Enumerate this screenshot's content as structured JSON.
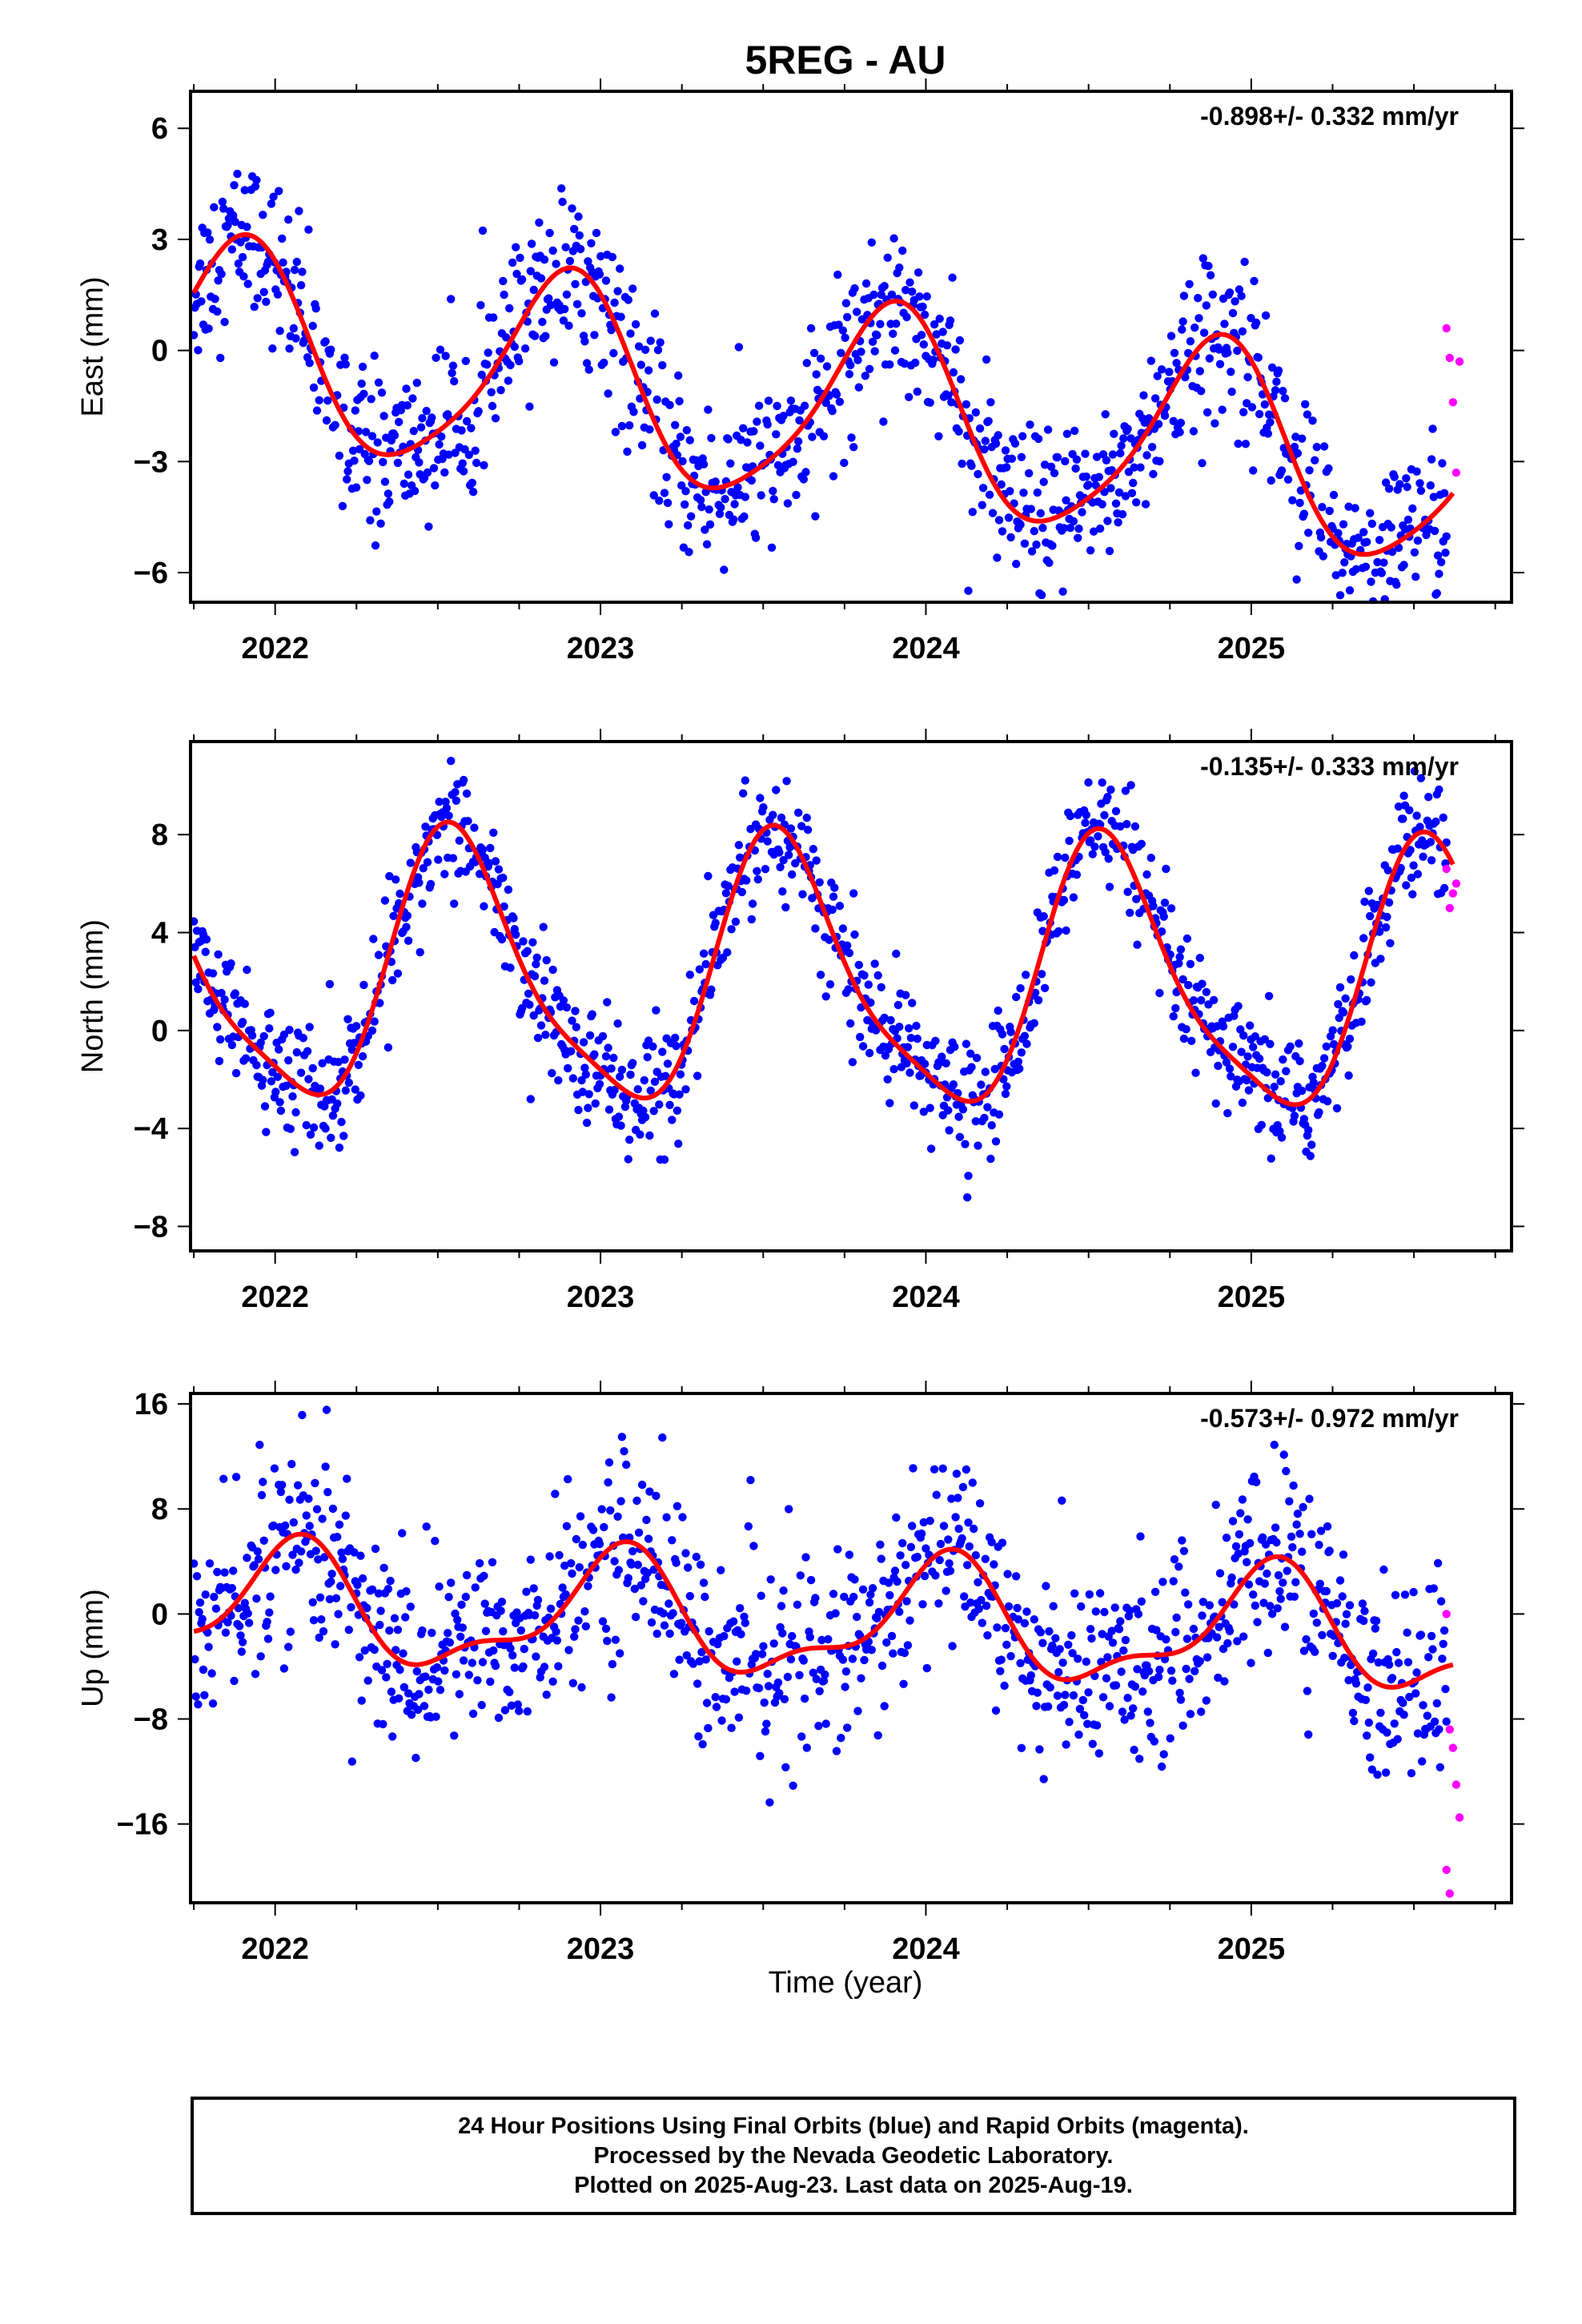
{
  "title": "5REG - AU",
  "xlabel": "Time (year)",
  "chart_data": [
    {
      "type": "scatter",
      "component": "East",
      "ylabel": "East (mm)",
      "rate": "-0.898+/- 0.332 mm/yr",
      "xlim": [
        2021.74,
        2025.8
      ],
      "ylim": [
        -6.8,
        7.0
      ],
      "yticks": [
        6,
        3,
        0,
        -3,
        -6
      ],
      "xticks": [
        2022,
        2023,
        2024,
        2025
      ],
      "colors": {
        "final": "#0000ff",
        "rapid": "#ff00ff",
        "fit": "#ff0000"
      },
      "fit_model": {
        "offset": 0.2,
        "trend": -0.898,
        "annual": {
          "amp": 2.7,
          "peak": 2021.89
        },
        "semiannual": {
          "amp": 0.45,
          "peak": 2021.95
        },
        "x_range": [
          2021.75,
          2025.62
        ]
      },
      "final_series": {
        "x_range": [
          2021.75,
          2025.6
        ],
        "count": 1180,
        "scatter": 1.1
      },
      "rapid_points": {
        "x": [
          2025.6,
          2025.61,
          2025.62,
          2025.63,
          2025.64
        ],
        "y": [
          0.6,
          -0.2,
          -1.4,
          -3.3,
          -0.3
        ]
      }
    },
    {
      "type": "scatter",
      "component": "North",
      "ylabel": "North (mm)",
      "rate": "-0.135+/- 0.333 mm/yr",
      "xlim": [
        2021.74,
        2025.8
      ],
      "ylim": [
        -9.0,
        11.8
      ],
      "yticks": [
        8,
        4,
        0,
        -4,
        -8
      ],
      "xticks": [
        2022,
        2023,
        2024,
        2025
      ],
      "colors": {
        "final": "#0000ff",
        "rapid": "#ff00ff",
        "fit": "#ff0000"
      },
      "fit_model": {
        "offset": 2.3,
        "trend": -0.135,
        "annual": {
          "amp": 5.3,
          "peak": 2021.56
        },
        "semiannual": {
          "amp": 1.2,
          "peak": 2021.5
        },
        "x_range": [
          2021.75,
          2025.62
        ]
      },
      "final_series": {
        "x_range": [
          2021.75,
          2025.6
        ],
        "count": 1180,
        "scatter": 1.25
      },
      "rapid_points": {
        "x": [
          2025.6,
          2025.61,
          2025.62,
          2025.63
        ],
        "y": [
          6.6,
          5.0,
          5.6,
          6.0
        ]
      }
    },
    {
      "type": "scatter",
      "component": "Up",
      "ylabel": "Up (mm)",
      "rate": "-0.573+/- 0.972 mm/yr",
      "xlim": [
        2021.74,
        2025.8
      ],
      "ylim": [
        -22.0,
        16.8
      ],
      "yticks": [
        16,
        8,
        0,
        -8,
        -16
      ],
      "xticks": [
        2022,
        2023,
        2024,
        2025
      ],
      "colors": {
        "final": "#0000ff",
        "rapid": "#ff00ff",
        "fit": "#ff0000"
      },
      "fit_model": {
        "offset": 0.5,
        "trend": -0.573,
        "annual": {
          "amp": 4.2,
          "peak": 2022.05
        },
        "semiannual": {
          "amp": 1.7,
          "peak": 2022.1
        },
        "x_range": [
          2021.75,
          2025.62
        ]
      },
      "final_series": {
        "x_range": [
          2021.75,
          2025.6
        ],
        "count": 1180,
        "scatter": 3.8
      },
      "rapid_points": {
        "x": [
          2025.6,
          2025.61,
          2025.62,
          2025.63,
          2025.64,
          2025.6,
          2025.61
        ],
        "y": [
          0.0,
          -8.8,
          -10.2,
          -13.0,
          -15.5,
          -19.5,
          -21.3
        ]
      }
    }
  ],
  "footer": {
    "line1": "24 Hour Positions Using Final Orbits (blue) and Rapid Orbits (magenta).",
    "line2": "Processed by the Nevada Geodetic Laboratory.",
    "line3": "Plotted on 2025-Aug-23. Last data on 2025-Aug-19."
  }
}
